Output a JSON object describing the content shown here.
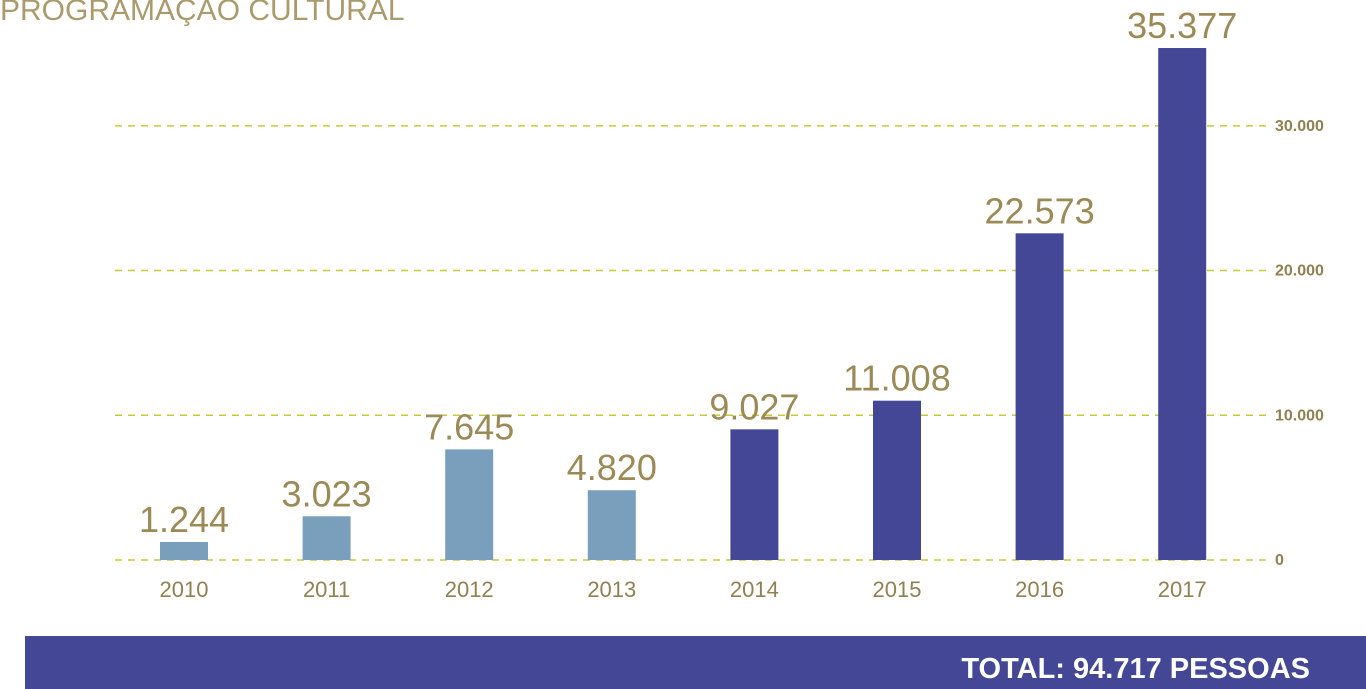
{
  "chart_data": {
    "type": "bar",
    "title": "PROGRAMAÇÃO CULTURAL",
    "categories": [
      "2010",
      "2011",
      "2012",
      "2013",
      "2014",
      "2015",
      "2016",
      "2017"
    ],
    "values": [
      1244,
      3023,
      7645,
      4820,
      9027,
      11008,
      22573,
      35377
    ],
    "value_labels": [
      "1.244",
      "3.023",
      "7.645",
      "4.820",
      "9.027",
      "11.008",
      "22.573",
      "35.377"
    ],
    "colors": [
      "#7a9fbd",
      "#7a9fbd",
      "#7a9fbd",
      "#7a9fbd",
      "#444796",
      "#444796",
      "#444796",
      "#444796"
    ],
    "ylim": [
      0,
      36000
    ],
    "yticks": [
      0,
      {
        "value": 10000,
        "label": "10.000"
      },
      {
        "value": 20000,
        "label": "20.000"
      },
      {
        "value": 30000,
        "label": "30.000"
      }
    ],
    "grid": true,
    "annotation": "TOTAL: 94.717 PESSOAS"
  }
}
